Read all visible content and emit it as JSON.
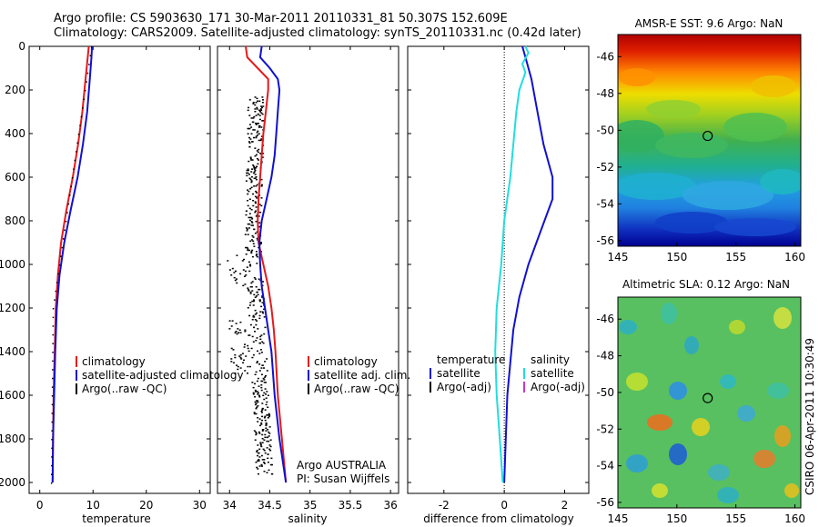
{
  "header": {
    "line1": "Argo profile: CS 5903630_171 30-Mar-2011 20110331_81 50.307S 152.609E",
    "line2": "Climatology: CARS2009. Satellite-adjusted climatology: synTS_20110331.nc (0.42d later)"
  },
  "credit": "CSIRO 06-Apr-2011 10:30:49",
  "colors": {
    "climatology": "#e41a1c",
    "satellite": "#1010d0",
    "argo": "#000000",
    "salinity_sat": "#22dddd",
    "argo_adj_sal": "#cc33cc"
  },
  "chart_data": [
    {
      "id": "temperature",
      "type": "line",
      "xlabel": "temperature",
      "xlim": [
        -2,
        32
      ],
      "ylim": [
        2050,
        0
      ],
      "xticks": [
        0,
        10,
        20,
        30
      ],
      "yticks": [
        0,
        200,
        400,
        600,
        800,
        1000,
        1200,
        1400,
        1600,
        1800,
        2000
      ],
      "legend": [
        "climatology",
        "satellite-adjusted climatology",
        "Argo(..raw -QC)"
      ],
      "series": [
        {
          "name": "climatology",
          "color": "#e41a1c",
          "points": [
            [
              9.2,
              0
            ],
            [
              9.0,
              50
            ],
            [
              8.6,
              150
            ],
            [
              8.0,
              300
            ],
            [
              7.2,
              450
            ],
            [
              6.2,
              600
            ],
            [
              5.0,
              750
            ],
            [
              4.0,
              900
            ],
            [
              3.4,
              1050
            ],
            [
              3.0,
              1200
            ],
            [
              2.8,
              1400
            ],
            [
              2.6,
              1600
            ],
            [
              2.5,
              1800
            ],
            [
              2.4,
              2000
            ]
          ]
        },
        {
          "name": "satellite-adjusted climatology",
          "color": "#1010d0",
          "points": [
            [
              9.8,
              0
            ],
            [
              9.7,
              50
            ],
            [
              9.4,
              150
            ],
            [
              8.9,
              300
            ],
            [
              8.1,
              450
            ],
            [
              7.1,
              600
            ],
            [
              5.8,
              750
            ],
            [
              4.6,
              900
            ],
            [
              3.7,
              1050
            ],
            [
              3.2,
              1200
            ],
            [
              2.9,
              1400
            ],
            [
              2.7,
              1600
            ],
            [
              2.5,
              1800
            ],
            [
              2.4,
              2000
            ]
          ]
        }
      ]
    },
    {
      "id": "salinity",
      "type": "line",
      "xlabel": "salinity",
      "xlim": [
        33.85,
        36.1
      ],
      "ylim": [
        2050,
        0
      ],
      "xticks": [
        34,
        34.5,
        35,
        35.5,
        36
      ],
      "yticks": [
        0,
        200,
        400,
        600,
        800,
        1000,
        1200,
        1400,
        1600,
        1800,
        2000
      ],
      "legend": [
        "climatology",
        "satellite adj. clim.",
        "Argo(..raw -QC)"
      ],
      "annotation": [
        "Argo AUSTRALIA",
        "PI: Susan Wijffels"
      ],
      "series": [
        {
          "name": "climatology",
          "color": "#e41a1c",
          "points": [
            [
              34.2,
              0
            ],
            [
              34.22,
              50
            ],
            [
              34.35,
              100
            ],
            [
              34.48,
              150
            ],
            [
              34.48,
              200
            ],
            [
              34.45,
              300
            ],
            [
              34.42,
              400
            ],
            [
              34.4,
              500
            ],
            [
              34.38,
              600
            ],
            [
              34.36,
              700
            ],
            [
              34.35,
              800
            ],
            [
              34.36,
              900
            ],
            [
              34.42,
              1000
            ],
            [
              34.48,
              1100
            ],
            [
              34.52,
              1200
            ],
            [
              34.55,
              1300
            ],
            [
              34.57,
              1400
            ],
            [
              34.6,
              1600
            ],
            [
              34.65,
              1800
            ],
            [
              34.7,
              2000
            ]
          ]
        },
        {
          "name": "satellite adj. clim.",
          "color": "#1010d0",
          "points": [
            [
              34.4,
              0
            ],
            [
              34.38,
              50
            ],
            [
              34.5,
              100
            ],
            [
              34.6,
              150
            ],
            [
              34.62,
              200
            ],
            [
              34.6,
              300
            ],
            [
              34.58,
              400
            ],
            [
              34.56,
              500
            ],
            [
              34.52,
              600
            ],
            [
              34.46,
              700
            ],
            [
              34.4,
              800
            ],
            [
              34.37,
              900
            ],
            [
              34.38,
              1000
            ],
            [
              34.4,
              1100
            ],
            [
              34.44,
              1200
            ],
            [
              34.48,
              1300
            ],
            [
              34.52,
              1400
            ],
            [
              34.56,
              1600
            ],
            [
              34.62,
              1800
            ],
            [
              34.7,
              2000
            ]
          ]
        }
      ]
    },
    {
      "id": "difference",
      "type": "line",
      "xlabel": "difference from climatology",
      "xlim": [
        -3.2,
        2.8
      ],
      "ylim": [
        2050,
        0
      ],
      "xticks": [
        -2,
        0,
        2
      ],
      "yticks": [
        0,
        200,
        400,
        600,
        800,
        1000,
        1200,
        1400,
        1600,
        1800,
        2000
      ],
      "legend_left": {
        "title": "temperature",
        "items": [
          "satellite",
          "Argo(-adj)"
        ]
      },
      "legend_right": {
        "title": "salinity",
        "items": [
          "satellite",
          "Argo(-adj)"
        ]
      },
      "series": [
        {
          "name": "satellite",
          "color": "#1010d0",
          "points": [
            [
              0.6,
              0
            ],
            [
              0.7,
              50
            ],
            [
              0.9,
              150
            ],
            [
              1.1,
              300
            ],
            [
              1.3,
              450
            ],
            [
              1.6,
              600
            ],
            [
              1.6,
              700
            ],
            [
              1.2,
              850
            ],
            [
              0.8,
              1000
            ],
            [
              0.5,
              1150
            ],
            [
              0.3,
              1300
            ],
            [
              0.2,
              1450
            ],
            [
              0.1,
              1600
            ],
            [
              0.05,
              1800
            ],
            [
              0.0,
              2000
            ]
          ]
        },
        {
          "name": "satellite",
          "color": "#22dddd",
          "points": [
            [
              0.7,
              0
            ],
            [
              0.8,
              30
            ],
            [
              0.6,
              80
            ],
            [
              0.7,
              120
            ],
            [
              0.5,
              200
            ],
            [
              0.4,
              300
            ],
            [
              0.3,
              450
            ],
            [
              0.2,
              600
            ],
            [
              0.0,
              800
            ],
            [
              -0.1,
              1000
            ],
            [
              -0.25,
              1200
            ],
            [
              -0.3,
              1400
            ],
            [
              -0.25,
              1600
            ],
            [
              -0.15,
              1800
            ],
            [
              -0.05,
              2000
            ]
          ]
        }
      ]
    },
    {
      "id": "sst_map",
      "type": "heatmap",
      "title": "AMSR-E SST: 9.6 Argo: NaN",
      "xlim": [
        145,
        160.5
      ],
      "ylim": [
        -56.3,
        -44.8
      ],
      "xticks": [
        145,
        150,
        155,
        160
      ],
      "yticks": [
        -46,
        -48,
        -50,
        -52,
        -54,
        -56
      ],
      "marker": [
        152.609,
        -50.307
      ]
    },
    {
      "id": "sla_map",
      "type": "heatmap",
      "title": "Altimetric SLA: 0.12 Argo: NaN",
      "xlim": [
        145,
        160.5
      ],
      "ylim": [
        -56.3,
        -44.8
      ],
      "xticks": [
        145,
        150,
        155,
        160
      ],
      "yticks": [
        -46,
        -48,
        -50,
        -52,
        -54,
        -56
      ],
      "marker": [
        152.609,
        -50.307
      ]
    }
  ]
}
